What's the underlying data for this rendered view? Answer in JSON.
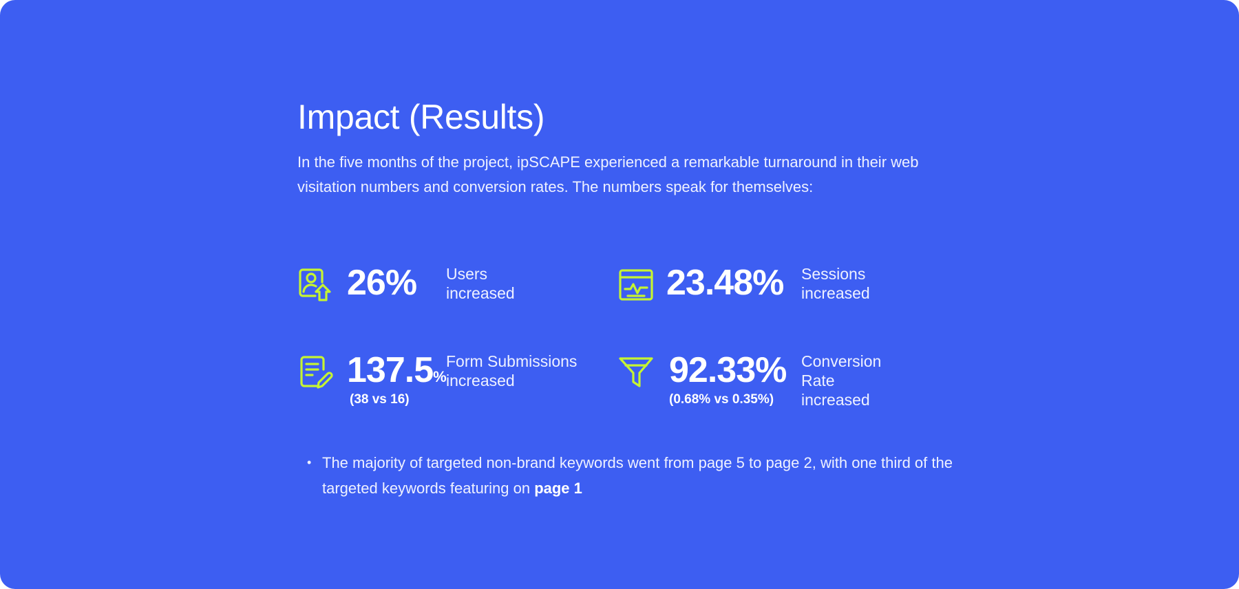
{
  "heading": "Impact (Results)",
  "intro": "In the five months of the project, ipSCAPE experienced a remarkable turnaround in their web visitation numbers and conversion rates. The numbers speak for themselves:",
  "accent_color": "#c6f432",
  "background_color": "#3d5ef2",
  "stats": [
    {
      "icon": "user-upload-icon",
      "value": "26%",
      "unit": "",
      "sub": "",
      "label_line1": "Users",
      "label_line2": "increased"
    },
    {
      "icon": "activity-monitor-icon",
      "value": "23.48%",
      "unit": "",
      "sub": "",
      "label_line1": "Sessions",
      "label_line2": "increased"
    },
    {
      "icon": "form-edit-icon",
      "value": "137.5",
      "unit": "%",
      "sub": "(38 vs 16)",
      "label_line1": "Form Submissions",
      "label_line2": "increased"
    },
    {
      "icon": "funnel-icon",
      "value": "92.33%",
      "unit": "",
      "sub": "(0.68% vs 0.35%)",
      "label_line1": "Conversion",
      "label_line2": "Rate increased"
    }
  ],
  "bullet": {
    "text": "The majority of targeted non-brand keywords went from page 5 to page 2, with one third of the targeted keywords featuring on ",
    "bold": "page 1"
  }
}
